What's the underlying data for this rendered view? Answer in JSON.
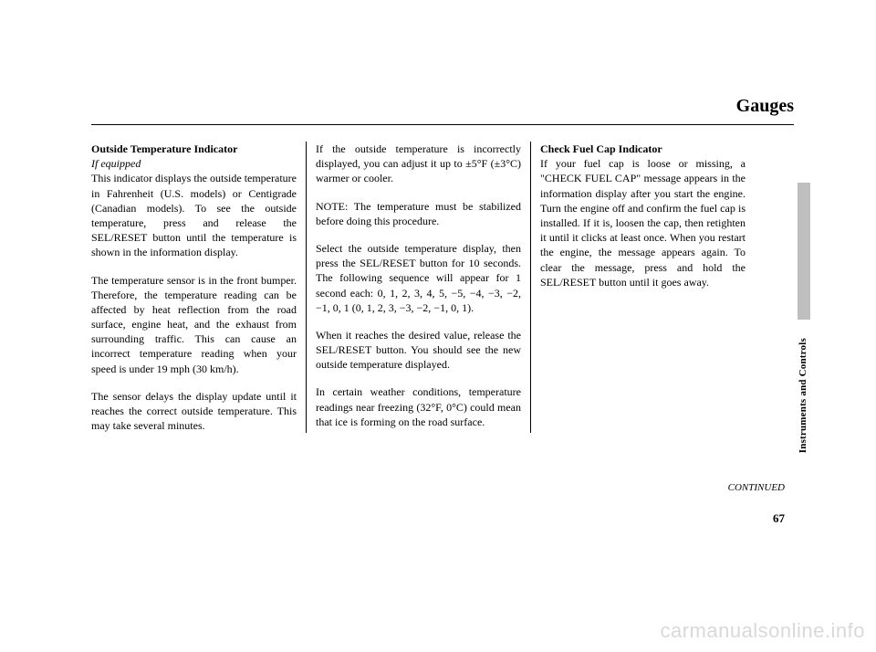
{
  "page_title": "Gauges",
  "side_label": "Instruments and Controls",
  "continued": "CONTINUED",
  "page_number": "67",
  "watermark": "carmanualsonline.info",
  "col1": {
    "head": "Outside Temperature Indicator",
    "subhead": "If equipped",
    "p1": "This indicator displays the outside temperature in Fahrenheit (U.S. models) or Centigrade (Canadian models). To see the outside temperature, press and release the SEL/RESET button until the temperature is shown in the information display.",
    "p2": "The temperature sensor is in the front bumper. Therefore, the temperature reading can be affected by heat reflection from the road surface, engine heat, and the exhaust from surrounding traffic. This can cause an incorrect temperature reading when your speed is under 19 mph (30 km/h).",
    "p3": "The sensor delays the display update until it reaches the correct outside temperature. This may take several minutes."
  },
  "col2": {
    "p1": "If the outside temperature is incorrectly displayed, you can adjust it up to ±5°F (±3°C) warmer or cooler.",
    "p2": "NOTE: The temperature must be stabilized before doing this procedure.",
    "p3": "Select the outside temperature display, then press the SEL/RESET button for 10 seconds. The following sequence will appear for 1 second each: 0, 1, 2, 3, 4, 5, −5, −4, −3, −2, −1, 0, 1 (0, 1, 2, 3, −3, −2, −1, 0, 1).",
    "p4": "When it reaches the desired value, release the SEL/RESET button. You should see the new outside temperature displayed.",
    "p5": "In certain weather conditions, temperature readings near freezing (32°F, 0°C) could mean that ice is forming on the road surface."
  },
  "col3": {
    "head": "Check Fuel Cap Indicator",
    "p1": "If your fuel cap is loose or missing, a \"CHECK FUEL CAP\" message appears in the information display after you start the engine. Turn the engine off and confirm the fuel cap is installed. If it is, loosen the cap, then retighten it until it clicks at least once. When you restart the engine, the message appears again. To clear the message, press and hold the SEL/RESET button until it goes away."
  }
}
